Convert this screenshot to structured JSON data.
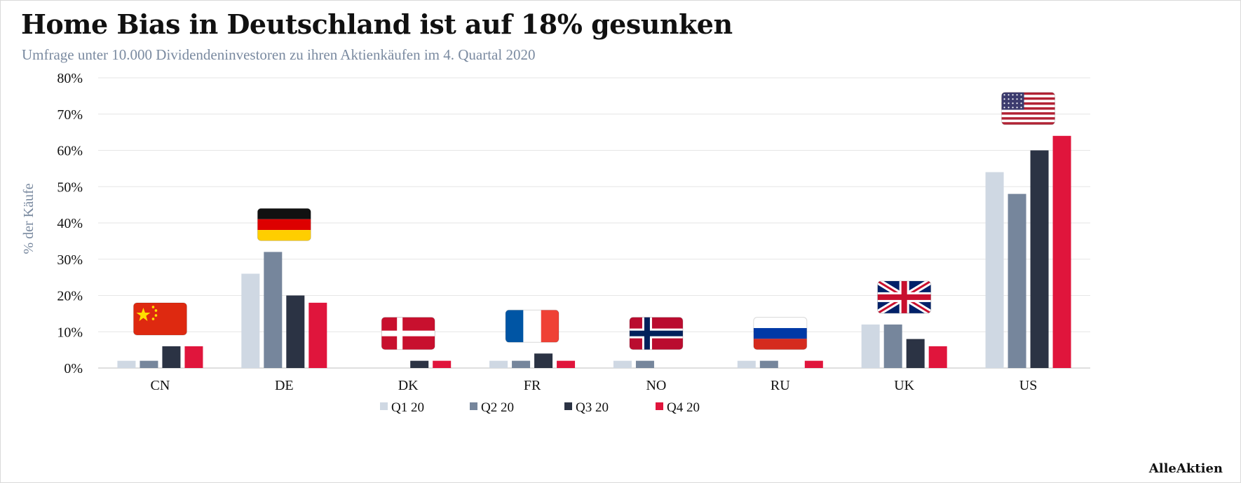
{
  "header": {
    "title": "Home Bias in Deutschland ist auf 18% gesunken",
    "subtitle": "Umfrage unter 10.000 Dividendeninvestoren zu ihren Aktienkäufen im 4. Quartal 2020"
  },
  "brand": "AlleAktien",
  "chart_data": {
    "type": "bar",
    "title": "Home Bias in Deutschland ist auf 18% gesunken",
    "subtitle": "Umfrage unter 10.000 Dividendeninvestoren zu ihren Aktienkäufen im 4. Quartal 2020",
    "xlabel": "",
    "ylabel": "% der Käufe",
    "ylim": [
      0,
      80
    ],
    "yticks": [
      0,
      10,
      20,
      30,
      40,
      50,
      60,
      70,
      80
    ],
    "ytick_labels": [
      "0%",
      "10%",
      "20%",
      "30%",
      "40%",
      "50%",
      "60%",
      "70%",
      "80%"
    ],
    "grid": true,
    "legend_position": "bottom-center",
    "categories": [
      "CN",
      "DE",
      "DK",
      "FR",
      "NO",
      "RU",
      "UK",
      "US"
    ],
    "flags": [
      "china-flag-icon",
      "germany-flag-icon",
      "denmark-flag-icon",
      "france-flag-icon",
      "norway-flag-icon",
      "russia-flag-icon",
      "uk-flag-icon",
      "us-flag-icon"
    ],
    "series": [
      {
        "name": "Q1 20",
        "color": "#cfd8e3",
        "values": [
          2,
          26,
          0,
          2,
          2,
          2,
          12,
          54
        ]
      },
      {
        "name": "Q2 20",
        "color": "#76869c",
        "values": [
          2,
          32,
          0,
          2,
          2,
          2,
          12,
          48
        ]
      },
      {
        "name": "Q3 20",
        "color": "#2b3344",
        "values": [
          6,
          20,
          2,
          4,
          0,
          0,
          8,
          60
        ]
      },
      {
        "name": "Q4 20",
        "color": "#e0153c",
        "values": [
          6,
          18,
          2,
          2,
          0,
          2,
          6,
          64
        ]
      }
    ]
  }
}
